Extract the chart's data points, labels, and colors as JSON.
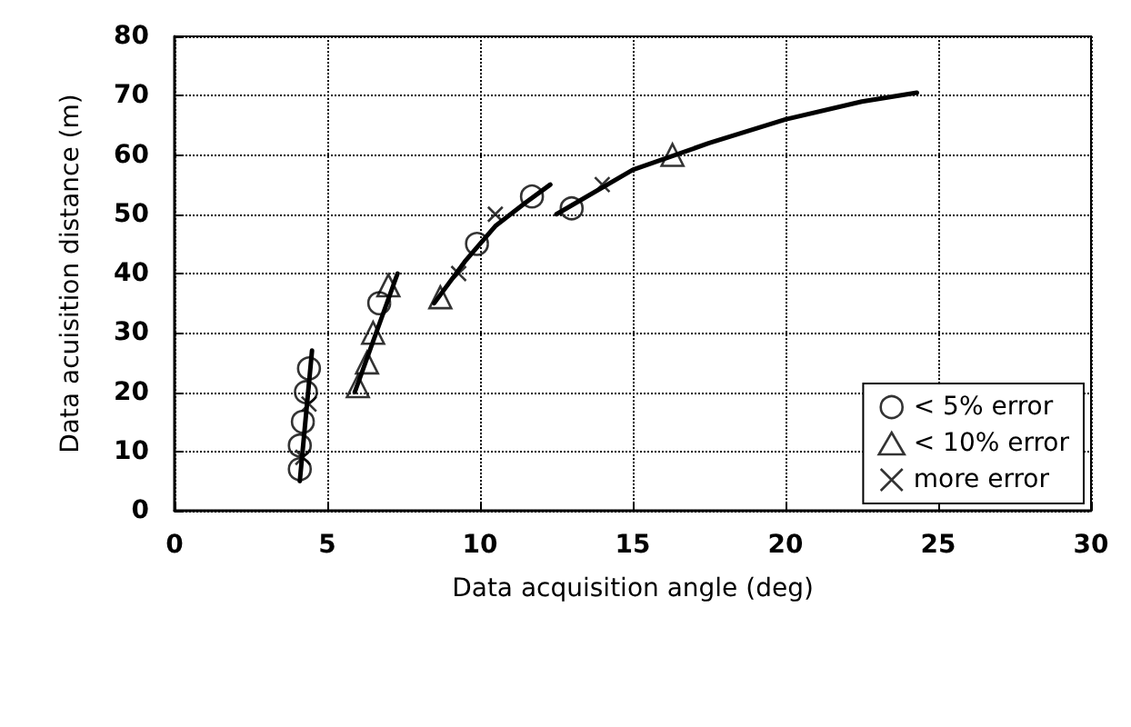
{
  "chart_data": {
    "type": "scatter",
    "xlabel": "Data acquisition angle (deg)",
    "ylabel": "Data acuisition distance (m)",
    "xlim": [
      0,
      30
    ],
    "ylim": [
      0,
      80
    ],
    "xticks": [
      0,
      5,
      10,
      15,
      20,
      25,
      30
    ],
    "yticks": [
      0,
      10,
      20,
      30,
      40,
      50,
      60,
      70,
      80
    ],
    "grid": true,
    "legend": "bottom right",
    "series": [
      {
        "name": "< 5% error",
        "color": "#000000",
        "marker": "circle",
        "x": [
          4.1,
          4.1,
          4.2,
          4.3,
          4.4,
          6.7,
          9.9,
          11.7,
          13.0
        ],
        "values": [
          7,
          11,
          15,
          20,
          24,
          35,
          45,
          53,
          51
        ]
      },
      {
        "name": "< 10% error",
        "color": "#000000",
        "marker": "triangle",
        "x": [
          6.0,
          6.3,
          6.5,
          7.0,
          8.7,
          16.3
        ],
        "values": [
          21,
          25,
          30,
          38,
          36,
          60
        ]
      },
      {
        "name": "more error",
        "color": "#000000",
        "marker": "cross",
        "x": [
          4.2,
          4.4,
          9.3,
          10.5,
          14.0
        ],
        "values": [
          9,
          18,
          40,
          50,
          55
        ]
      },
      {
        "type": "line",
        "color": "#000000",
        "marker": "none",
        "x": [
          4.1,
          4.5
        ],
        "values": [
          5,
          27
        ]
      },
      {
        "type": "line",
        "color": "#000000",
        "marker": "none",
        "x": [
          5.9,
          7.3
        ],
        "values": [
          20,
          40
        ]
      },
      {
        "type": "line",
        "color": "#000000",
        "marker": "none",
        "x": [
          8.5,
          9.5,
          10.5,
          11.5,
          12.3
        ],
        "values": [
          35,
          42,
          48,
          52,
          55
        ]
      },
      {
        "type": "line",
        "color": "#000000",
        "marker": "none",
        "x": [
          12.5,
          15,
          17.5,
          20,
          22.5,
          24.3
        ],
        "values": [
          50,
          57.5,
          62,
          66,
          69,
          70.5
        ]
      }
    ]
  }
}
